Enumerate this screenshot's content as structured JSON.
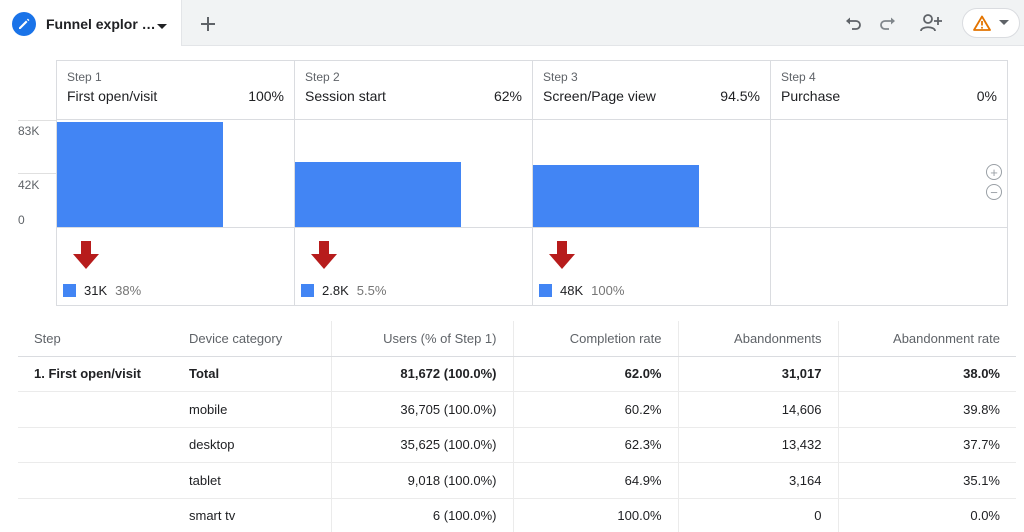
{
  "tab": {
    "title": "Funnel explor …",
    "icon": "pencil-icon"
  },
  "toolbar": {
    "undo": "undo-icon",
    "redo": "redo-icon",
    "share": "add-person-icon",
    "warning": "warning-icon"
  },
  "colors": {
    "accent": "#1a73e8",
    "bar": "#4285f4",
    "arrow": "#b71c1c",
    "warning": "#e37400"
  },
  "funnel": {
    "y_ticks": [
      "83K",
      "42K",
      "0"
    ],
    "steps": [
      {
        "num": "Step 1",
        "name": "First open/visit",
        "pct": "100%",
        "drop_value": "31K",
        "drop_pct": "38%"
      },
      {
        "num": "Step 2",
        "name": "Session start",
        "pct": "62%",
        "drop_value": "2.8K",
        "drop_pct": "5.5%"
      },
      {
        "num": "Step 3",
        "name": "Screen/Page view",
        "pct": "94.5%",
        "drop_value": "48K",
        "drop_pct": "100%"
      },
      {
        "num": "Step 4",
        "name": "Purchase",
        "pct": "0%"
      }
    ]
  },
  "chart_data": {
    "type": "bar",
    "categories": [
      "First open/visit",
      "Session start",
      "Screen/Page view",
      "Purchase"
    ],
    "values": [
      81672,
      50655,
      47855,
      0
    ],
    "ylim": [
      0,
      83000
    ],
    "ylabel": "",
    "xlabel": ""
  },
  "table": {
    "headers": [
      "Step",
      "Device category",
      "Users (% of Step 1)",
      "Completion rate",
      "Abandonments",
      "Abandonment rate"
    ],
    "rows": [
      {
        "step": "1. First open/visit",
        "device": "Total",
        "users": "81,672 (100.0%)",
        "completion": "62.0%",
        "abandonments": "31,017",
        "abandon_rate": "38.0%"
      },
      {
        "step": "",
        "device": "mobile",
        "users": "36,705 (100.0%)",
        "completion": "60.2%",
        "abandonments": "14,606",
        "abandon_rate": "39.8%"
      },
      {
        "step": "",
        "device": "desktop",
        "users": "35,625 (100.0%)",
        "completion": "62.3%",
        "abandonments": "13,432",
        "abandon_rate": "37.7%"
      },
      {
        "step": "",
        "device": "tablet",
        "users": "9,018 (100.0%)",
        "completion": "64.9%",
        "abandonments": "3,164",
        "abandon_rate": "35.1%"
      },
      {
        "step": "",
        "device": "smart tv",
        "users": "6 (100.0%)",
        "completion": "100.0%",
        "abandonments": "0",
        "abandon_rate": "0.0%"
      }
    ]
  }
}
